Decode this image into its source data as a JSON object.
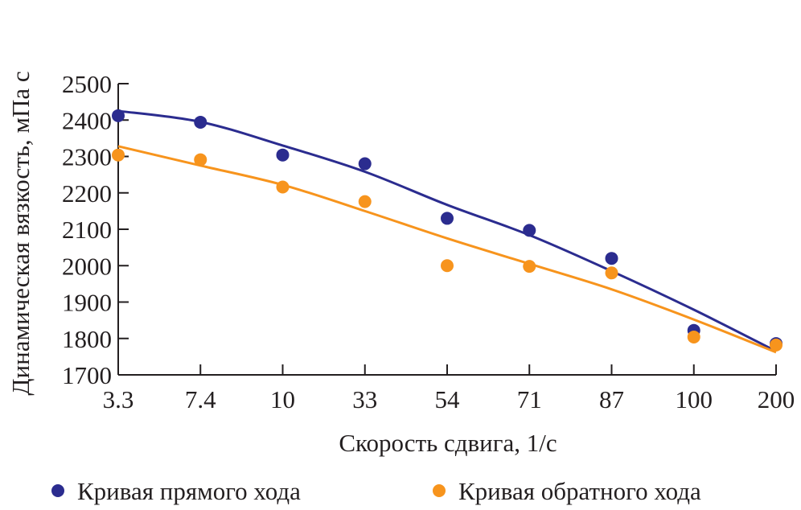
{
  "chart_data": {
    "type": "scatter",
    "title": "",
    "xlabel": "Скорость сдвига, 1/с",
    "ylabel": "Динамическая вязкость, мПа с",
    "categories": [
      "3.3",
      "7.4",
      "10",
      "33",
      "54",
      "71",
      "87",
      "100",
      "200"
    ],
    "yticks": [
      "1700",
      "1800",
      "1900",
      "2000",
      "2100",
      "2200",
      "2300",
      "2400",
      "2500"
    ],
    "ylim": [
      1700,
      2500
    ],
    "grid": false,
    "legend_position": "bottom",
    "series": [
      {
        "name": "Кривая прямого хода",
        "color": "#2b2c8f",
        "values": [
          2412,
          2394,
          2304,
          2280,
          2130,
          2097,
          2020,
          1822,
          1786
        ],
        "trend": [
          2425,
          2395,
          2330,
          2258,
          2167,
          2084,
          1985,
          1879,
          1765
        ]
      },
      {
        "name": "Кривая обратного хода",
        "color": "#f7941d",
        "values": [
          2304,
          2291,
          2216,
          2176,
          2000,
          1998,
          1980,
          1804,
          1782
        ],
        "trend": [
          2328,
          2275,
          2222,
          2150,
          2075,
          2005,
          1935,
          1852,
          1762
        ]
      }
    ]
  }
}
